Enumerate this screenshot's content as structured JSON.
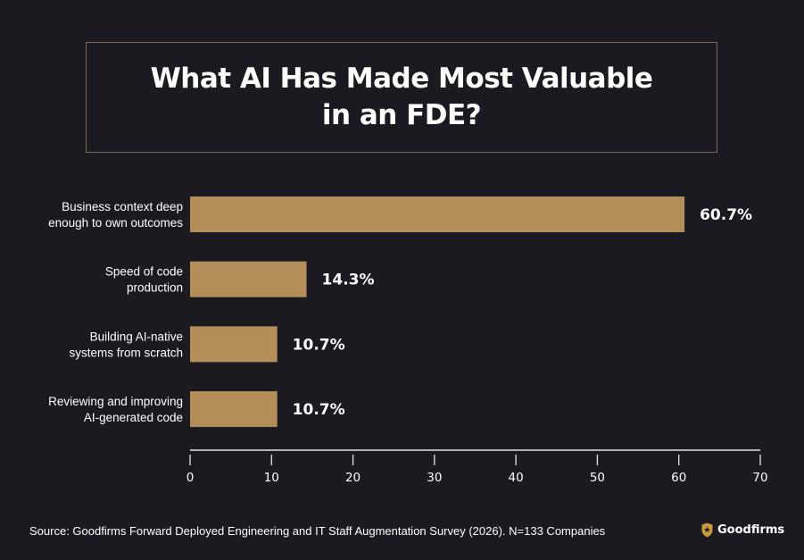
{
  "colors": {
    "background": "#1b1a21",
    "bar": "#b38e58",
    "title_border": "#7d6a56",
    "brand_gold": "#c89b3c",
    "text": "#ffffff"
  },
  "chart_data": {
    "type": "bar",
    "orientation": "horizontal",
    "title": "What AI Has Made Most Valuable\nin an FDE?",
    "categories": [
      "Business context deep\nenough to own outcomes",
      "Speed of code\nproduction",
      "Building AI-native\nsystems from scratch",
      "Reviewing and improving\nAI-generated code"
    ],
    "values": [
      60.7,
      14.3,
      10.7,
      10.7
    ],
    "value_labels": [
      "60.7%",
      "14.3%",
      "10.7%",
      "10.7%"
    ],
    "xlim": [
      0,
      70
    ],
    "xticks": [
      0,
      10,
      20,
      30,
      40,
      50,
      60,
      70
    ],
    "grid": false,
    "legend": "none"
  },
  "footer": {
    "source": "Source: Goodfirms Forward Deployed Engineering and IT Staff Augmentation Survey (2026). N=133 Companies",
    "brand_name": "Goodfirms",
    "brand_icon": "goodfirms-shield-icon"
  }
}
